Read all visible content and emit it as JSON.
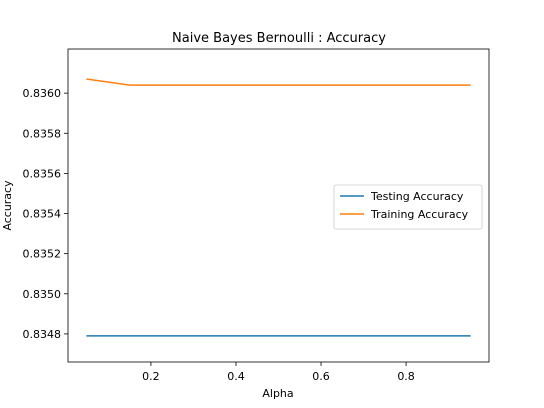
{
  "chart_data": {
    "type": "line",
    "title": "Naive Bayes Bernoulli  : Accuracy",
    "xlabel": "Alpha",
    "ylabel": "Accuracy",
    "xlim": [
      0.005,
      0.995
    ],
    "ylim": [
      0.83466,
      0.83622
    ],
    "xticks": [
      0.2,
      0.4,
      0.6,
      0.8
    ],
    "xtick_labels": [
      "0.2",
      "0.4",
      "0.6",
      "0.8"
    ],
    "yticks": [
      0.8348,
      0.835,
      0.8352,
      0.8354,
      0.8356,
      0.8358,
      0.836
    ],
    "ytick_labels": [
      "0.8348",
      "0.8350",
      "0.8352",
      "0.8354",
      "0.8356",
      "0.8358",
      "0.8360"
    ],
    "grid": false,
    "legend_position": "right",
    "x": [
      0.05,
      0.15,
      0.25,
      0.35,
      0.45,
      0.55,
      0.65,
      0.75,
      0.85,
      0.95
    ],
    "series": [
      {
        "name": "Testing Accuracy",
        "color": "#1f77b4",
        "values": [
          0.83479,
          0.83479,
          0.83479,
          0.83479,
          0.83479,
          0.83479,
          0.83479,
          0.83479,
          0.83479,
          0.83479
        ]
      },
      {
        "name": "Training Accuracy",
        "color": "#ff7f0e",
        "values": [
          0.83607,
          0.83604,
          0.83604,
          0.83604,
          0.83604,
          0.83604,
          0.83604,
          0.83604,
          0.83604,
          0.83604
        ]
      }
    ]
  }
}
